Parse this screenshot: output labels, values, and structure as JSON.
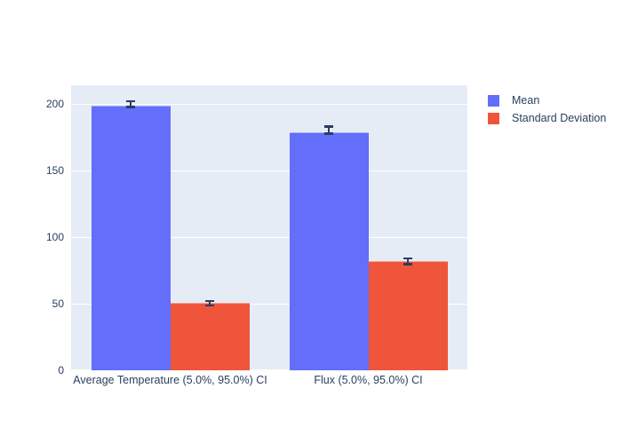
{
  "chart_data": {
    "type": "bar",
    "title": "",
    "xlabel": "",
    "ylabel": "",
    "categories": [
      "Average Temperature (5.0%, 95.0%) CI",
      "Flux (5.0%, 95.0%) CI"
    ],
    "series": [
      {
        "name": "Mean",
        "color": "#636EFA",
        "values": [
          199,
          179
        ],
        "error_plus": [
          4,
          5
        ],
        "error_minus": [
          2,
          2
        ]
      },
      {
        "name": "Standard Deviation",
        "color": "#EF553B",
        "values": [
          51,
          82
        ],
        "error_plus": [
          2,
          3
        ],
        "error_minus": [
          3,
          3
        ]
      }
    ],
    "yticks": [
      0,
      50,
      100,
      150,
      200
    ],
    "ytick_labels": [
      "0",
      "50",
      "100",
      "150",
      "200"
    ],
    "ylim": [
      0,
      214
    ],
    "grid": true,
    "legend_position": "outside-top-right",
    "colors": {
      "plot_background": "#E5ECF6",
      "gridline": "#FFFFFF",
      "error_bar": "#2A3F5F",
      "text": "#2A3F5F",
      "page_background": "#FFFFFF"
    }
  }
}
